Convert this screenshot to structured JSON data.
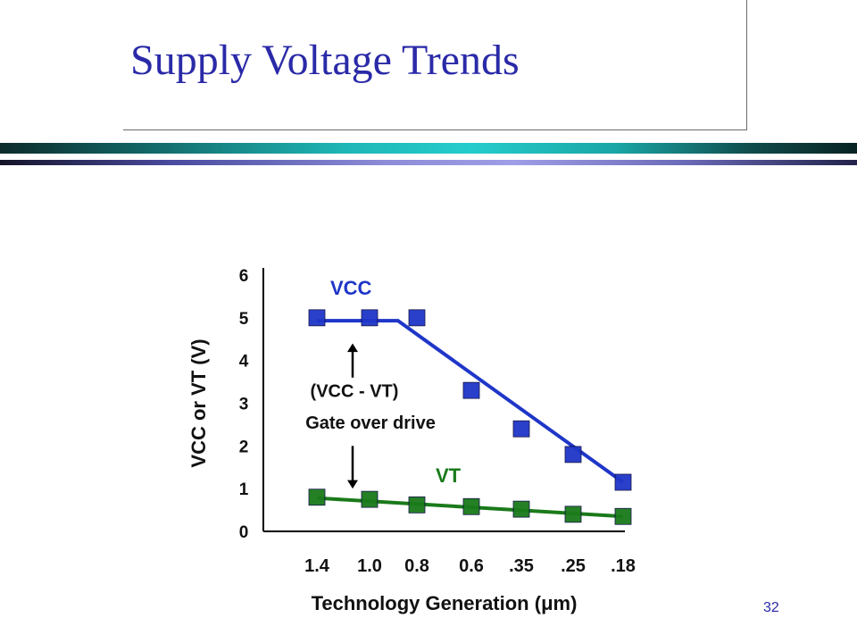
{
  "slide": {
    "title": "Supply Voltage Trends",
    "page_number": "32"
  },
  "colors": {
    "title": "#2a2aa8",
    "vcc": "#1f36c8",
    "vt": "#1a7a1a"
  },
  "chart_data": {
    "type": "line",
    "title": "",
    "xlabel": "Technology Generation (μm)",
    "ylabel": "VCC or VT (V)",
    "categories": [
      "1.4",
      "1.0",
      "0.8",
      "0.6",
      ".35",
      ".25",
      ".18"
    ],
    "ylim": [
      0,
      6
    ],
    "yticks": [
      "0",
      "1",
      "2",
      "3",
      "4",
      "5",
      "6"
    ],
    "grid": false,
    "series": [
      {
        "name": "VCC",
        "values": [
          5.0,
          5.0,
          5.0,
          3.3,
          2.4,
          1.8,
          1.15
        ],
        "fit_line": [
          [
            0,
            4.93
          ],
          [
            1,
            4.93
          ],
          [
            1.6,
            4.93
          ],
          [
            6,
            1.15
          ]
        ]
      },
      {
        "name": "VT",
        "values": [
          0.8,
          0.75,
          0.62,
          0.58,
          0.52,
          0.4,
          0.35
        ],
        "fit_line": [
          [
            0,
            0.78
          ],
          [
            6,
            0.35
          ]
        ]
      }
    ],
    "annotations": {
      "gap_label": "(VCC - VT)",
      "gap_note": "Gate over drive"
    }
  }
}
